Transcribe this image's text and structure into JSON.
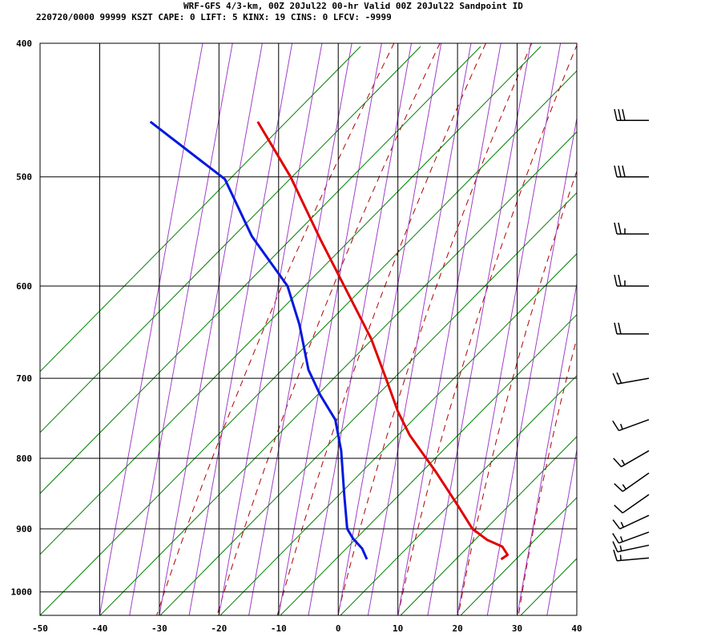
{
  "header": {
    "line1": "WRF-GFS 4/3-km, 00Z 20Jul22 00-hr Valid 00Z 20Jul22 Sandpoint ID",
    "line2": "220720/0000 99999  KSZT    CAPE:     0 LIFT:     5 KINX:    19 CINS:     0 LFCV: -9999"
  },
  "chart_data": {
    "type": "line",
    "title": "",
    "xlabel": "",
    "ylabel": "",
    "x_scale": "linear, skewed isotherms",
    "y_scale": "log pressure",
    "xlim": [
      -50,
      40
    ],
    "ylim": [
      1040,
      400
    ],
    "x_ticks": [
      -50,
      -40,
      -30,
      -20,
      -10,
      0,
      10,
      20,
      30,
      40
    ],
    "y_ticks": [
      400,
      500,
      600,
      700,
      800,
      900,
      1000
    ],
    "grid": true,
    "colors": {
      "temperature": "#e00000",
      "dewpoint": "#0018e0",
      "dry_adiabats": "#b00000",
      "moist_adiabats": "#a040c8",
      "mixing_ratio": "#008000",
      "grid": "#000000"
    },
    "series": [
      {
        "id": "temperature",
        "points": [
          [
            27.3,
            947
          ],
          [
            28.4,
            940
          ],
          [
            27.5,
            927
          ],
          [
            25.0,
            917
          ],
          [
            22.5,
            900
          ],
          [
            20.0,
            865
          ],
          [
            16.5,
            820
          ],
          [
            12.0,
            770
          ],
          [
            10.0,
            740
          ],
          [
            8.0,
            700
          ],
          [
            5.5,
            655
          ],
          [
            1.0,
            600
          ],
          [
            -3.0,
            555
          ],
          [
            -8.0,
            500
          ],
          [
            -13.5,
            456
          ]
        ]
      },
      {
        "id": "dewpoint",
        "points": [
          [
            4.8,
            947
          ],
          [
            4.0,
            930
          ],
          [
            2.5,
            915
          ],
          [
            1.5,
            900
          ],
          [
            1.0,
            850
          ],
          [
            0.5,
            790
          ],
          [
            -0.5,
            750
          ],
          [
            -3.0,
            720
          ],
          [
            -5.0,
            690
          ],
          [
            -6.5,
            640
          ],
          [
            -8.5,
            600
          ],
          [
            -14.5,
            552
          ],
          [
            -19.0,
            502
          ],
          [
            -31.5,
            456
          ]
        ]
      }
    ],
    "wind_barbs": [
      {
        "p": 455,
        "dir_deg": 270,
        "speed_kt": 30
      },
      {
        "p": 500,
        "dir_deg": 270,
        "speed_kt": 30
      },
      {
        "p": 550,
        "dir_deg": 270,
        "speed_kt": 25
      },
      {
        "p": 600,
        "dir_deg": 270,
        "speed_kt": 25
      },
      {
        "p": 650,
        "dir_deg": 270,
        "speed_kt": 20
      },
      {
        "p": 700,
        "dir_deg": 260,
        "speed_kt": 20
      },
      {
        "p": 750,
        "dir_deg": 250,
        "speed_kt": 15
      },
      {
        "p": 790,
        "dir_deg": 240,
        "speed_kt": 15
      },
      {
        "p": 820,
        "dir_deg": 235,
        "speed_kt": 15
      },
      {
        "p": 850,
        "dir_deg": 235,
        "speed_kt": 10
      },
      {
        "p": 880,
        "dir_deg": 245,
        "speed_kt": 15
      },
      {
        "p": 905,
        "dir_deg": 250,
        "speed_kt": 15
      },
      {
        "p": 925,
        "dir_deg": 258,
        "speed_kt": 15
      },
      {
        "p": 945,
        "dir_deg": 265,
        "speed_kt": 15
      }
    ]
  }
}
